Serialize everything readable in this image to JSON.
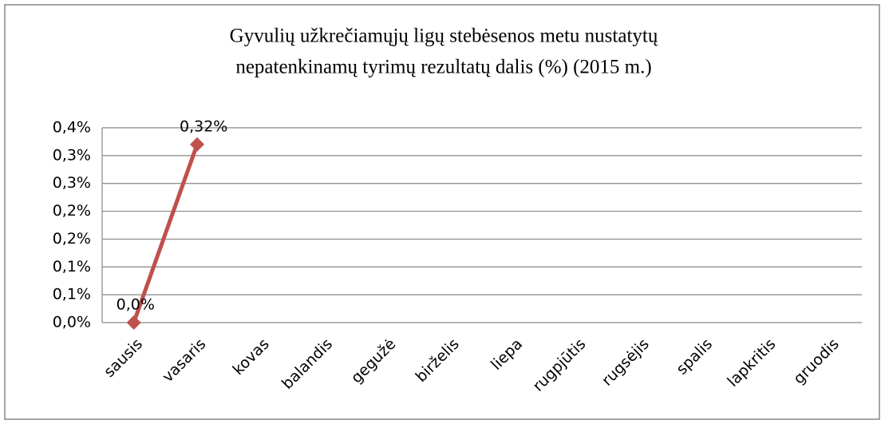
{
  "chart_data": {
    "type": "line",
    "title": [
      "Gyvulių užkrečiamųjų  ligų stebėsenos metu nustatytų",
      "nepatenkinamų tyrimų rezultatų dalis (%) (2015 m.)"
    ],
    "categories": [
      "sausis",
      "vasaris",
      "kovas",
      "balandis",
      "gegužė",
      "birželis",
      "liepa",
      "rugpjūtis",
      "rugsėjis",
      "spalis",
      "lapkritis",
      "gruodis"
    ],
    "series": [
      {
        "color": "#c0504d",
        "values": [
          0,
          0.32,
          null,
          null,
          null,
          null,
          null,
          null,
          null,
          null,
          null,
          null
        ],
        "value_labels": [
          "0,0%",
          "0,32%",
          null,
          null,
          null,
          null,
          null,
          null,
          null,
          null,
          null,
          null
        ]
      }
    ],
    "ylim": [
      0,
      0.35
    ],
    "yticks": [
      {
        "value": 0,
        "label": "0,0%"
      },
      {
        "value": 0.05,
        "label": "0,1%"
      },
      {
        "value": 0.1,
        "label": "0,1%"
      },
      {
        "value": 0.15,
        "label": "0,2%"
      },
      {
        "value": 0.2,
        "label": "0,2%"
      },
      {
        "value": 0.25,
        "label": "0,3%"
      },
      {
        "value": 0.3,
        "label": "0,3%"
      },
      {
        "value": 0.35,
        "label": "0,4%"
      }
    ],
    "grid": true
  }
}
